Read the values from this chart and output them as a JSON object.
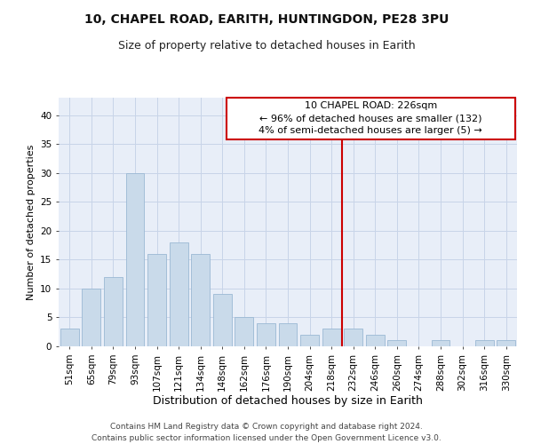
{
  "title1": "10, CHAPEL ROAD, EARITH, HUNTINGDON, PE28 3PU",
  "title2": "Size of property relative to detached houses in Earith",
  "xlabel": "Distribution of detached houses by size in Earith",
  "ylabel": "Number of detached properties",
  "categories": [
    "51sqm",
    "65sqm",
    "79sqm",
    "93sqm",
    "107sqm",
    "121sqm",
    "134sqm",
    "148sqm",
    "162sqm",
    "176sqm",
    "190sqm",
    "204sqm",
    "218sqm",
    "232sqm",
    "246sqm",
    "260sqm",
    "274sqm",
    "288sqm",
    "302sqm",
    "316sqm",
    "330sqm"
  ],
  "values": [
    3,
    10,
    12,
    30,
    16,
    18,
    16,
    9,
    5,
    4,
    4,
    2,
    3,
    3,
    2,
    1,
    0,
    1,
    0,
    1,
    1
  ],
  "bar_color": "#c9daea",
  "bar_edge_color": "#9bb8d4",
  "grid_color": "#c8d4e8",
  "background_color": "#e8eef8",
  "vline_color": "#cc0000",
  "annotation_text": "10 CHAPEL ROAD: 226sqm\n← 96% of detached houses are smaller (132)\n4% of semi-detached houses are larger (5) →",
  "annotation_box_color": "#cc0000",
  "ylim": [
    0,
    43
  ],
  "yticks": [
    0,
    5,
    10,
    15,
    20,
    25,
    30,
    35,
    40
  ],
  "footer": "Contains HM Land Registry data © Crown copyright and database right 2024.\nContains public sector information licensed under the Open Government Licence v3.0.",
  "title1_fontsize": 10,
  "title2_fontsize": 9,
  "xlabel_fontsize": 9,
  "ylabel_fontsize": 8,
  "tick_fontsize": 7.5,
  "annotation_fontsize": 8,
  "footer_fontsize": 6.5
}
